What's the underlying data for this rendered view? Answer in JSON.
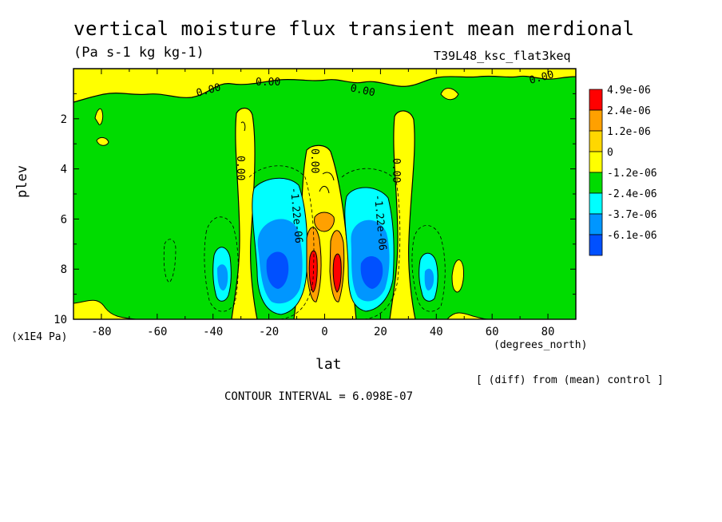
{
  "chart_data": {
    "type": "heatmap",
    "title": "vertical moisture flux transient mean merdional",
    "units": "(Pa s-1 kg kg-1)",
    "run_id": "T39L48_ksc_flat3keq",
    "xlabel": "lat",
    "x_unit_label": "(degrees_north)",
    "ylabel": "plev",
    "y_unit_label": "(x1E4 Pa)",
    "xlim": [
      -90,
      90
    ],
    "ylim": [
      10,
      0
    ],
    "x_ticks": [
      "-80",
      "-60",
      "-40",
      "-20",
      "0",
      "20",
      "40",
      "60",
      "80"
    ],
    "y_ticks": [
      "2",
      "4",
      "6",
      "8",
      "10"
    ],
    "legend": {
      "placement": "right",
      "labels": [
        "4.9e-06",
        "2.4e-06",
        "1.2e-06",
        "0",
        "-1.2e-06",
        "-2.4e-06",
        "-3.7e-06",
        "-6.1e-06"
      ],
      "colors": [
        "#ff0000",
        "#ffa000",
        "#ffd700",
        "#ffff00",
        "#00dc00",
        "#00ffff",
        "#0096ff",
        "#0050ff"
      ]
    },
    "contour_labels": [
      "0.00",
      "0.00",
      "0.00",
      "0.00",
      "0.00",
      "0.00",
      "0.00",
      "-1.22e-06",
      "-1.22e-06"
    ],
    "note": "[ (diff) from (mean) control ]",
    "contour_interval": "CONTOUR INTERVAL = 6.098E-07",
    "features": [
      {
        "level": "4.9e-06",
        "lat": -3,
        "plev": 8.2
      },
      {
        "level": "4.9e-06",
        "lat": 5,
        "plev": 8.2
      },
      {
        "level": "-6.1e-06",
        "lat": -18,
        "plev": 8.1
      },
      {
        "level": "-6.1e-06",
        "lat": 17,
        "plev": 8.1
      }
    ]
  }
}
